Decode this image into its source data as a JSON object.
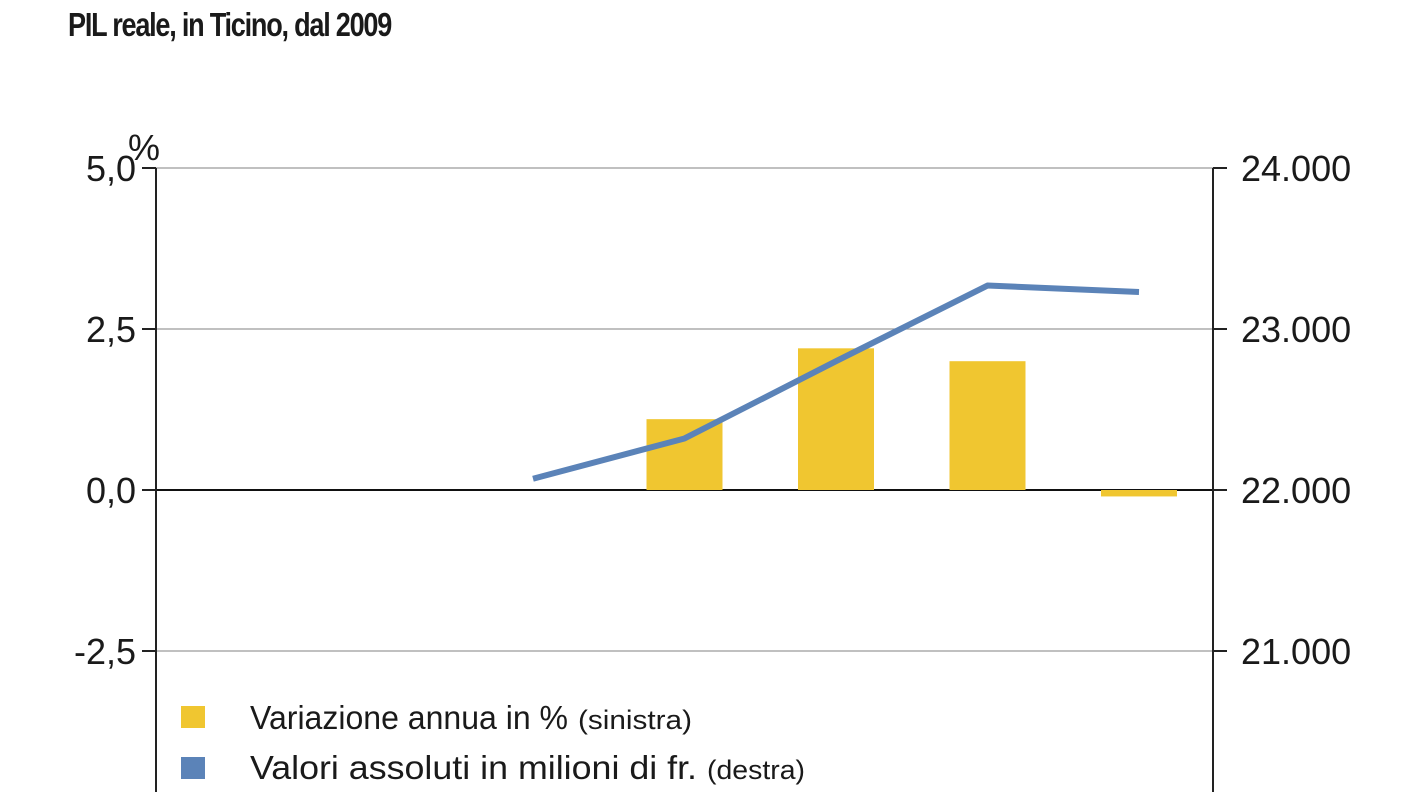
{
  "chart_data": {
    "type": "bar",
    "title": "PIL reale, in Ticino, dal 2009",
    "left_axis": {
      "unit_label": "%",
      "ylim": [
        -5.0,
        5.0
      ],
      "ticks": [
        5.0,
        2.5,
        0.0,
        -2.5
      ],
      "tick_labels": [
        "5,0",
        "2,5",
        "0,0",
        "-2,5"
      ]
    },
    "right_axis": {
      "ylim": [
        20000,
        24000
      ],
      "ticks": [
        24000,
        23000,
        22000,
        21000
      ],
      "tick_labels": [
        "24.000",
        "23.000",
        "22.000",
        "21.000"
      ]
    },
    "n_periods": 7,
    "series": [
      {
        "name": "Variazione annua in %",
        "name_note": "(sinistra)",
        "kind": "bar",
        "axis": "left",
        "color": "#f0c630",
        "values": [
          null,
          null,
          null,
          1.1,
          2.2,
          2.0,
          -0.1
        ]
      },
      {
        "name": "Valori assoluti in milioni di fr.",
        "name_note": "(destra)",
        "kind": "line",
        "axis": "right",
        "color": "#5b83b8",
        "values": [
          null,
          null,
          22070,
          22320,
          22800,
          23270,
          23230
        ]
      }
    ],
    "grid": true,
    "legend_position": "bottom-left"
  }
}
